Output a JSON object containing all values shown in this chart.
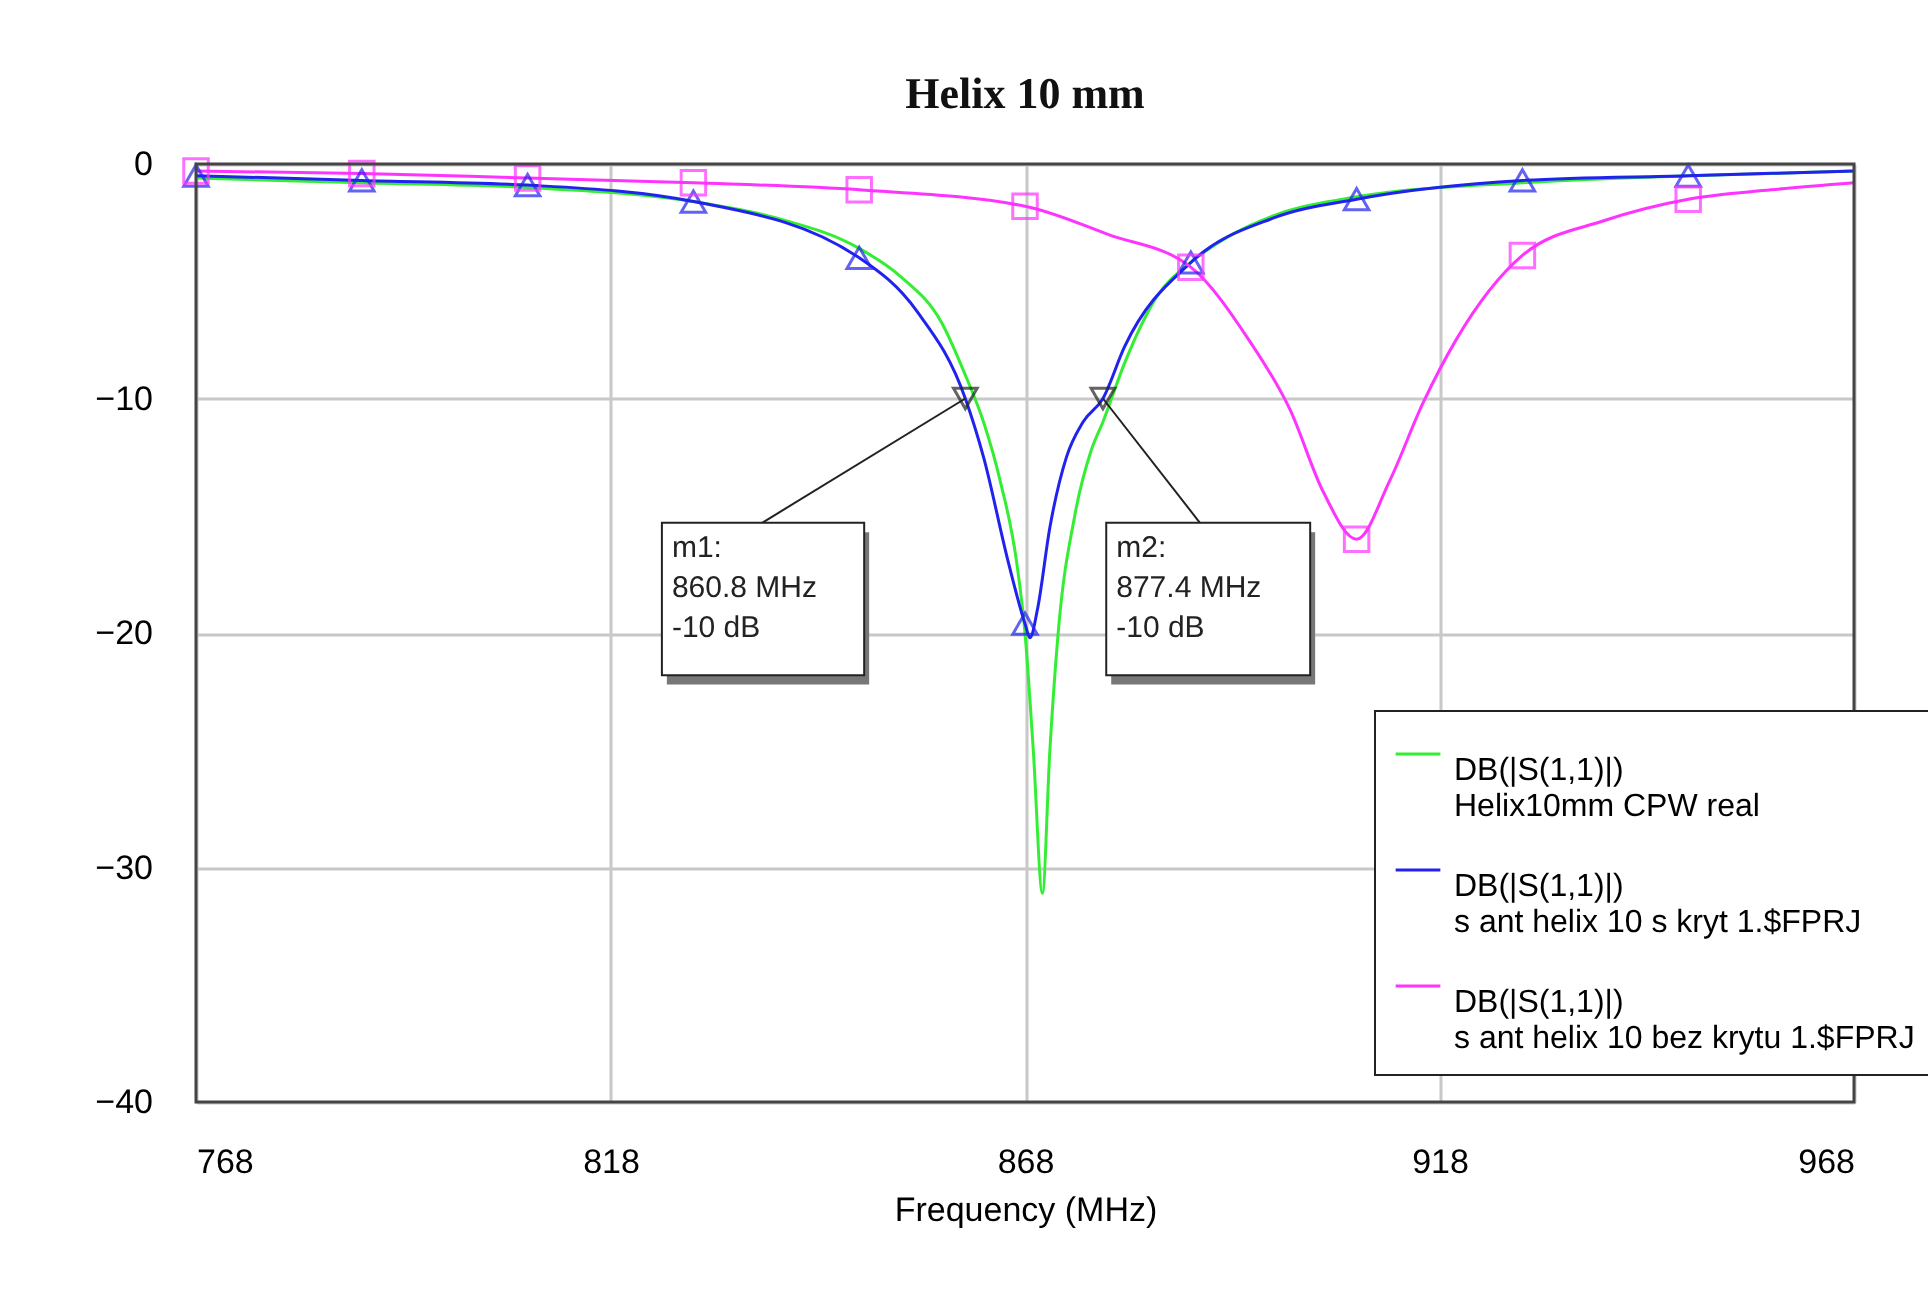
{
  "chart_data": {
    "type": "line",
    "title": "Helix 10 mm",
    "xlabel": "Frequency (MHz)",
    "xlim": [
      768,
      968
    ],
    "ylim": [
      -40,
      0
    ],
    "xticks": [
      768,
      818,
      868,
      918,
      968
    ],
    "yticks": [
      -40,
      -30,
      -20,
      -10,
      0
    ],
    "grid": true,
    "legend": "bottom right",
    "series": [
      {
        "name": "DB(|S(1,1)|)\nHelix10mm CPW real",
        "color": "#33ee33",
        "marker": "none",
        "x": [
          768,
          788,
          808,
          828,
          838,
          848,
          853,
          858,
          860.8,
          863,
          865,
          867,
          868,
          869,
          870.1,
          871,
          872,
          874,
          876,
          877.4,
          880,
          884,
          888,
          893,
          898,
          908,
          928,
          948,
          968
        ],
        "values": [
          -0.6,
          -0.8,
          -1.0,
          -1.6,
          -2.3,
          -3.6,
          -4.8,
          -6.8,
          -9,
          -11,
          -13.5,
          -17,
          -20,
          -25,
          -31.1,
          -25,
          -20,
          -15,
          -12.2,
          -11,
          -8.5,
          -5.6,
          -4.2,
          -3,
          -2.2,
          -1.4,
          -0.8,
          -0.5,
          -0.3
        ]
      },
      {
        "name": "DB(|S(1,1)|)\ns ant helix 10 s kryt 1.$FPRJ",
        "color": "#2222ee",
        "marker": "none",
        "x": [
          768,
          788,
          808,
          828,
          848,
          855,
          860.8,
          863,
          866,
          868,
          868.6,
          869.5,
          871,
          873,
          875,
          877.4,
          880,
          888,
          898,
          908,
          928,
          948,
          968
        ],
        "values": [
          -0.5,
          -0.7,
          -0.9,
          -1.6,
          -4.0,
          -6.3,
          -10,
          -12.5,
          -17,
          -19.6,
          -20.2,
          -19,
          -15.5,
          -12.5,
          -11,
          -10,
          -7.8,
          -4.2,
          -2.3,
          -1.5,
          -0.7,
          -0.5,
          -0.3
        ]
      },
      {
        "type": "scatter",
        "color": "#2222ee",
        "marker": "triangle",
        "x": [
          768,
          788,
          808,
          828,
          848,
          868,
          888,
          908,
          928,
          948
        ],
        "values": [
          -0.5,
          -0.7,
          -0.9,
          -1.6,
          -4.0,
          -19.6,
          -4.2,
          -1.5,
          -0.7,
          -0.5
        ]
      },
      {
        "name": "DB(|S(1,1)|)\ns ant helix 10 bez krytu 1.$FPRJ",
        "color": "#ff33ff",
        "marker": "none",
        "x": [
          768,
          788,
          808,
          828,
          848,
          868,
          878,
          888,
          895,
          900,
          904,
          908,
          912,
          916,
          920,
          928,
          938,
          948,
          958,
          968
        ],
        "values": [
          -0.3,
          -0.4,
          -0.6,
          -0.8,
          -1.1,
          -1.8,
          -3,
          -4.4,
          -7.5,
          -10.5,
          -14,
          -16,
          -13.5,
          -10.2,
          -7.5,
          -3.9,
          -2.4,
          -1.5,
          -1.1,
          -0.8
        ]
      },
      {
        "type": "scatter",
        "color": "#ff33ff",
        "marker": "square",
        "x": [
          768,
          788,
          808,
          828,
          848,
          868,
          888,
          908,
          928,
          948
        ],
        "values": [
          -0.3,
          -0.4,
          -0.6,
          -0.8,
          -1.1,
          -1.8,
          -4.4,
          -16,
          -3.9,
          -1.5
        ]
      }
    ],
    "annotations": [
      {
        "text": "m1:\n860.8 MHz\n-10 dB",
        "x": 860.8,
        "y": -10
      },
      {
        "text": "m2:\n877.4 MHz\n-10 dB",
        "x": 877.4,
        "y": -10
      }
    ]
  }
}
